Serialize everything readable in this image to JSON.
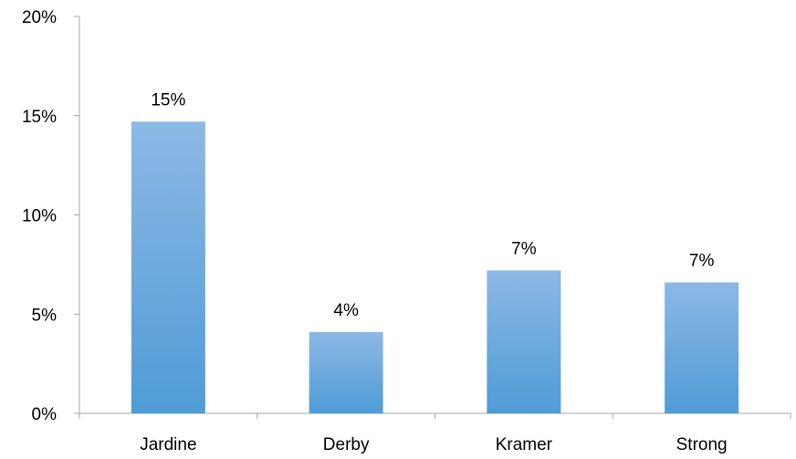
{
  "chart_data": {
    "type": "bar",
    "title": "",
    "xlabel": "",
    "ylabel": "",
    "categories": [
      "Jardine",
      "Derby",
      "Kramer",
      "Strong"
    ],
    "values": [
      14.7,
      4.1,
      7.2,
      6.6
    ],
    "data_labels": [
      "15%",
      "4%",
      "7%",
      "7%"
    ],
    "ylim": [
      0,
      20
    ],
    "yticks": [
      0,
      5,
      10,
      15,
      20
    ],
    "ytick_labels": [
      "0%",
      "5%",
      "10%",
      "15%",
      "20%"
    ],
    "grid": false,
    "legend": "none",
    "colors": {
      "bar_top": "#8DB8E5",
      "bar_bottom": "#4F9CD6",
      "axis": "#A6A6A6"
    }
  }
}
